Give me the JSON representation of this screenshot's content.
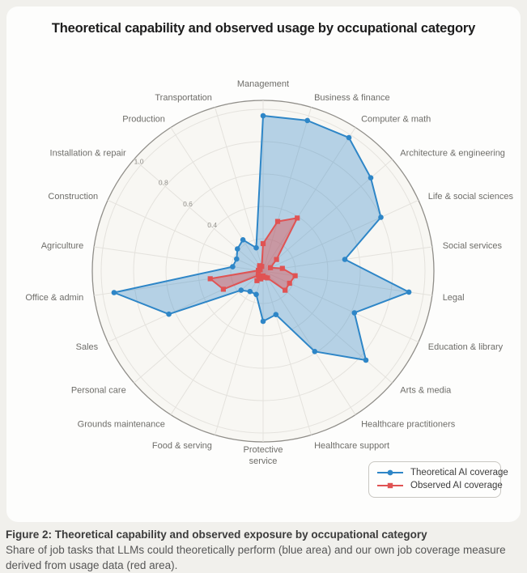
{
  "chart_data": {
    "type": "radar",
    "title": "Theoretical capability and observed usage by occupational category",
    "categories": [
      "Management",
      "Business & finance",
      "Computer & math",
      "Architecture & engineering",
      "Life & social sciences",
      "Social services",
      "Legal",
      "Education & library",
      "Arts & media",
      "Healthcare practitioners",
      "Healthcare support",
      "Protective service",
      "Food & serving",
      "Grounds maintenance",
      "Personal care",
      "Sales",
      "Office & admin",
      "Agriculture",
      "Construction",
      "Installation & repair",
      "Production",
      "Transportation"
    ],
    "series": [
      {
        "name": "Theoretical AI coverage",
        "color": "#2e86c7",
        "marker": "circle",
        "values": [
          0.96,
          0.97,
          0.98,
          0.88,
          0.8,
          0.51,
          0.91,
          0.62,
          0.84,
          0.59,
          0.28,
          0.31,
          0.15,
          0.15,
          0.18,
          0.64,
          0.93,
          0.19,
          0.18,
          0.21,
          0.23,
          0.15
        ]
      },
      {
        "name": "Observed AI coverage",
        "color": "#e05353",
        "marker": "square",
        "values": [
          0.17,
          0.32,
          0.39,
          0.11,
          0.05,
          0.12,
          0.2,
          0.18,
          0.18,
          0.05,
          0.04,
          0.03,
          0.05,
          0.07,
          0.04,
          0.27,
          0.33,
          0.03,
          0.02,
          0.03,
          0.04,
          0.03
        ]
      }
    ],
    "radial_ticks": [
      {
        "value": 1.0,
        "label": "1.0"
      },
      {
        "value": 0.8,
        "label": "0.8"
      },
      {
        "value": 0.6,
        "label": "0.6"
      },
      {
        "value": 0.4,
        "label": "0.4"
      }
    ],
    "rlim": [
      0,
      1.0
    ],
    "grid": true,
    "legend_position": "bottom-right",
    "wrap_labels": [
      "Protective service"
    ]
  },
  "legend": {
    "items": [
      {
        "label": "Theoretical AI coverage",
        "color": "#2e86c7",
        "marker": "circle"
      },
      {
        "label": "Observed AI coverage",
        "color": "#e05353",
        "marker": "square"
      }
    ]
  },
  "caption": {
    "bold": "Figure 2: Theoretical capability and observed exposure by occupational category",
    "text": "Share of job tasks that LLMs could theoretically perform (blue area) and our own job coverage measure derived from usage data (red area)."
  },
  "colors": {
    "blue": "#2e86c7",
    "red": "#e05353",
    "page_bg": "#f1f0ec",
    "card_bg": "#fdfdfc",
    "chart_bg": "#f8f7f3",
    "grid": "#e4e2dd",
    "outer_ring": "#908e89",
    "category_label": "#6e6d69",
    "tick_label": "#918f8a"
  }
}
